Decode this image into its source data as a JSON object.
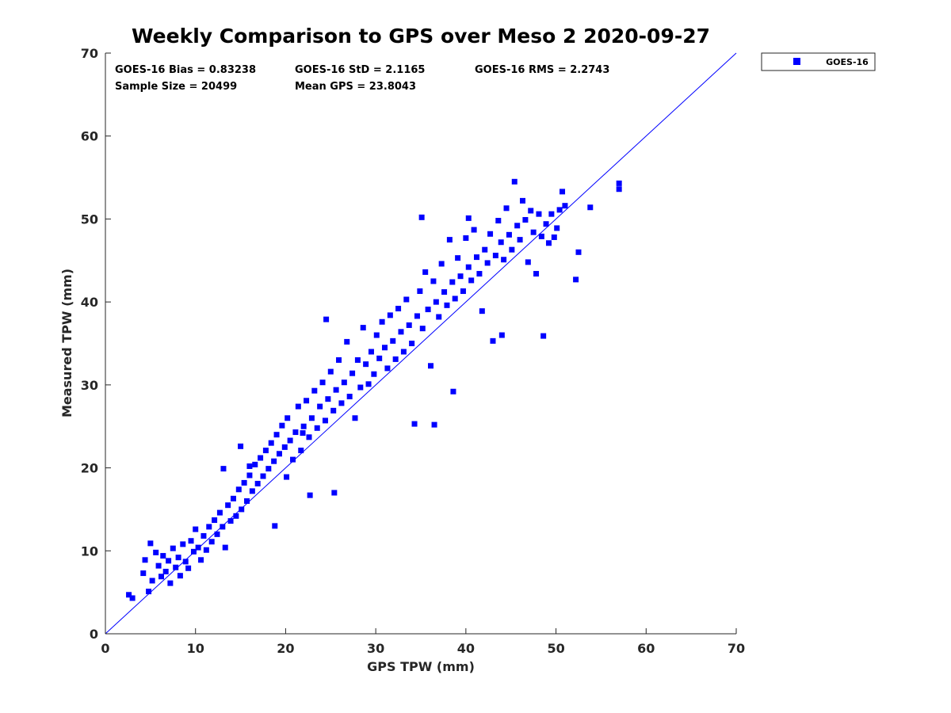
{
  "chart_data": {
    "type": "scatter",
    "title": "Weekly Comparison to GPS over Meso 2 2020-09-27",
    "xlabel": "GPS TPW (mm)",
    "ylabel": "Measured TPW (mm)",
    "xlim": [
      0,
      70
    ],
    "ylim": [
      0,
      70
    ],
    "x_ticks": [
      "0",
      "10",
      "20",
      "30",
      "40",
      "50",
      "60",
      "70"
    ],
    "y_ticks": [
      "0",
      "10",
      "20",
      "30",
      "40",
      "50",
      "60",
      "70"
    ],
    "grid": false,
    "legend_position": "outside-top-right",
    "reference_line": {
      "x": [
        0,
        70
      ],
      "y": [
        0,
        70
      ],
      "color": "#0000ff"
    },
    "stats": {
      "bias": "GOES-16 Bias = 0.83238",
      "std": "GOES-16 StD = 2.1165",
      "rms": "GOES-16 RMS = 2.2743",
      "sample_size": "Sample Size = 20499",
      "mean_gps": "Mean GPS = 23.8043"
    },
    "series": [
      {
        "name": "GOES-16",
        "color": "#0000ff",
        "marker": "square",
        "points": [
          [
            2.6,
            4.7
          ],
          [
            3.0,
            4.3
          ],
          [
            4.2,
            7.3
          ],
          [
            4.4,
            8.9
          ],
          [
            4.8,
            5.1
          ],
          [
            5.2,
            6.4
          ],
          [
            5.0,
            10.9
          ],
          [
            5.6,
            9.8
          ],
          [
            5.9,
            8.2
          ],
          [
            6.2,
            6.9
          ],
          [
            6.4,
            9.4
          ],
          [
            6.7,
            7.5
          ],
          [
            7.0,
            8.8
          ],
          [
            7.2,
            6.1
          ],
          [
            7.5,
            10.3
          ],
          [
            7.8,
            8.0
          ],
          [
            8.1,
            9.2
          ],
          [
            8.3,
            7.0
          ],
          [
            8.6,
            10.8
          ],
          [
            8.9,
            8.7
          ],
          [
            9.2,
            7.9
          ],
          [
            9.5,
            11.2
          ],
          [
            9.8,
            9.9
          ],
          [
            10.0,
            12.6
          ],
          [
            10.3,
            10.4
          ],
          [
            10.6,
            8.9
          ],
          [
            10.9,
            11.8
          ],
          [
            11.2,
            10.1
          ],
          [
            11.5,
            12.9
          ],
          [
            11.8,
            11.1
          ],
          [
            12.1,
            13.7
          ],
          [
            12.4,
            12.0
          ],
          [
            12.7,
            14.6
          ],
          [
            13.0,
            12.9
          ],
          [
            13.3,
            10.4
          ],
          [
            13.6,
            15.5
          ],
          [
            13.9,
            13.6
          ],
          [
            14.2,
            16.3
          ],
          [
            14.5,
            14.2
          ],
          [
            14.8,
            17.4
          ],
          [
            15.0,
            22.6
          ],
          [
            15.1,
            15.0
          ],
          [
            15.4,
            18.2
          ],
          [
            15.7,
            16.0
          ],
          [
            16.0,
            19.1
          ],
          [
            16.3,
            17.2
          ],
          [
            16.6,
            20.4
          ],
          [
            16.9,
            18.1
          ],
          [
            17.2,
            21.2
          ],
          [
            17.5,
            19.0
          ],
          [
            17.8,
            22.1
          ],
          [
            18.1,
            19.9
          ],
          [
            18.4,
            23.0
          ],
          [
            18.7,
            20.8
          ],
          [
            18.8,
            13.0
          ],
          [
            19.0,
            24.0
          ],
          [
            19.3,
            21.7
          ],
          [
            19.6,
            25.1
          ],
          [
            19.9,
            22.5
          ],
          [
            20.1,
            18.9
          ],
          [
            20.2,
            26.0
          ],
          [
            20.5,
            23.3
          ],
          [
            20.8,
            21.0
          ],
          [
            21.1,
            24.3
          ],
          [
            21.4,
            27.4
          ],
          [
            21.7,
            22.1
          ],
          [
            22.0,
            25.0
          ],
          [
            22.3,
            28.1
          ],
          [
            22.6,
            23.7
          ],
          [
            22.7,
            16.7
          ],
          [
            22.9,
            26.0
          ],
          [
            23.2,
            29.3
          ],
          [
            23.5,
            24.8
          ],
          [
            23.8,
            27.4
          ],
          [
            24.1,
            30.3
          ],
          [
            24.4,
            25.7
          ],
          [
            24.7,
            28.3
          ],
          [
            25.0,
            31.6
          ],
          [
            25.3,
            26.9
          ],
          [
            25.4,
            17.0
          ],
          [
            25.6,
            29.4
          ],
          [
            25.9,
            33.0
          ],
          [
            26.2,
            27.8
          ],
          [
            26.5,
            30.3
          ],
          [
            26.8,
            35.2
          ],
          [
            27.1,
            28.6
          ],
          [
            27.4,
            31.4
          ],
          [
            27.7,
            26.0
          ],
          [
            28.0,
            33.0
          ],
          [
            28.3,
            29.7
          ],
          [
            28.6,
            36.9
          ],
          [
            28.9,
            32.5
          ],
          [
            29.2,
            30.1
          ],
          [
            29.5,
            34.0
          ],
          [
            29.8,
            31.3
          ],
          [
            30.1,
            36.0
          ],
          [
            30.4,
            33.2
          ],
          [
            30.7,
            37.6
          ],
          [
            31.0,
            34.5
          ],
          [
            31.3,
            32.0
          ],
          [
            31.6,
            38.4
          ],
          [
            31.9,
            35.3
          ],
          [
            32.2,
            33.1
          ],
          [
            32.5,
            39.2
          ],
          [
            32.8,
            36.4
          ],
          [
            33.1,
            34.0
          ],
          [
            33.4,
            40.3
          ],
          [
            33.7,
            37.2
          ],
          [
            34.0,
            35.0
          ],
          [
            34.3,
            25.3
          ],
          [
            34.6,
            38.3
          ],
          [
            34.9,
            41.3
          ],
          [
            35.2,
            36.8
          ],
          [
            35.5,
            43.6
          ],
          [
            35.8,
            39.1
          ],
          [
            36.1,
            32.3
          ],
          [
            36.4,
            42.5
          ],
          [
            36.7,
            40.0
          ],
          [
            37.0,
            38.2
          ],
          [
            37.3,
            44.6
          ],
          [
            37.6,
            41.2
          ],
          [
            37.9,
            39.6
          ],
          [
            38.2,
            47.5
          ],
          [
            38.5,
            42.4
          ],
          [
            38.8,
            40.4
          ],
          [
            39.1,
            45.3
          ],
          [
            39.4,
            43.1
          ],
          [
            39.7,
            41.3
          ],
          [
            40.0,
            47.7
          ],
          [
            40.3,
            44.2
          ],
          [
            40.6,
            42.6
          ],
          [
            40.9,
            48.7
          ],
          [
            41.2,
            45.4
          ],
          [
            41.5,
            43.4
          ],
          [
            41.8,
            38.9
          ],
          [
            42.1,
            46.3
          ],
          [
            42.4,
            44.7
          ],
          [
            42.7,
            48.2
          ],
          [
            43.0,
            35.3
          ],
          [
            43.3,
            45.6
          ],
          [
            43.6,
            49.8
          ],
          [
            43.9,
            47.2
          ],
          [
            44.2,
            45.1
          ],
          [
            44.5,
            51.3
          ],
          [
            44.8,
            48.1
          ],
          [
            45.1,
            46.3
          ],
          [
            45.4,
            54.5
          ],
          [
            45.7,
            49.2
          ],
          [
            46.0,
            47.5
          ],
          [
            46.3,
            52.2
          ],
          [
            46.6,
            49.9
          ],
          [
            46.9,
            44.8
          ],
          [
            47.2,
            51.0
          ],
          [
            47.5,
            48.4
          ],
          [
            47.8,
            43.4
          ],
          [
            48.1,
            50.6
          ],
          [
            48.4,
            47.9
          ],
          [
            48.6,
            35.9
          ],
          [
            48.9,
            49.4
          ],
          [
            49.2,
            47.1
          ],
          [
            49.5,
            50.6
          ],
          [
            49.8,
            47.8
          ],
          [
            50.1,
            48.9
          ],
          [
            50.4,
            51.1
          ],
          [
            50.7,
            53.3
          ],
          [
            51.0,
            51.6
          ],
          [
            52.2,
            42.7
          ],
          [
            52.5,
            46.0
          ],
          [
            53.8,
            51.4
          ],
          [
            57.0,
            53.6
          ],
          [
            57.0,
            54.3
          ],
          [
            40.3,
            50.1
          ],
          [
            38.6,
            29.2
          ],
          [
            36.5,
            25.2
          ],
          [
            21.9,
            24.2
          ],
          [
            16.0,
            20.2
          ],
          [
            13.1,
            19.9
          ],
          [
            24.5,
            37.9
          ],
          [
            44.0,
            36.0
          ],
          [
            35.1,
            50.2
          ]
        ]
      }
    ]
  }
}
